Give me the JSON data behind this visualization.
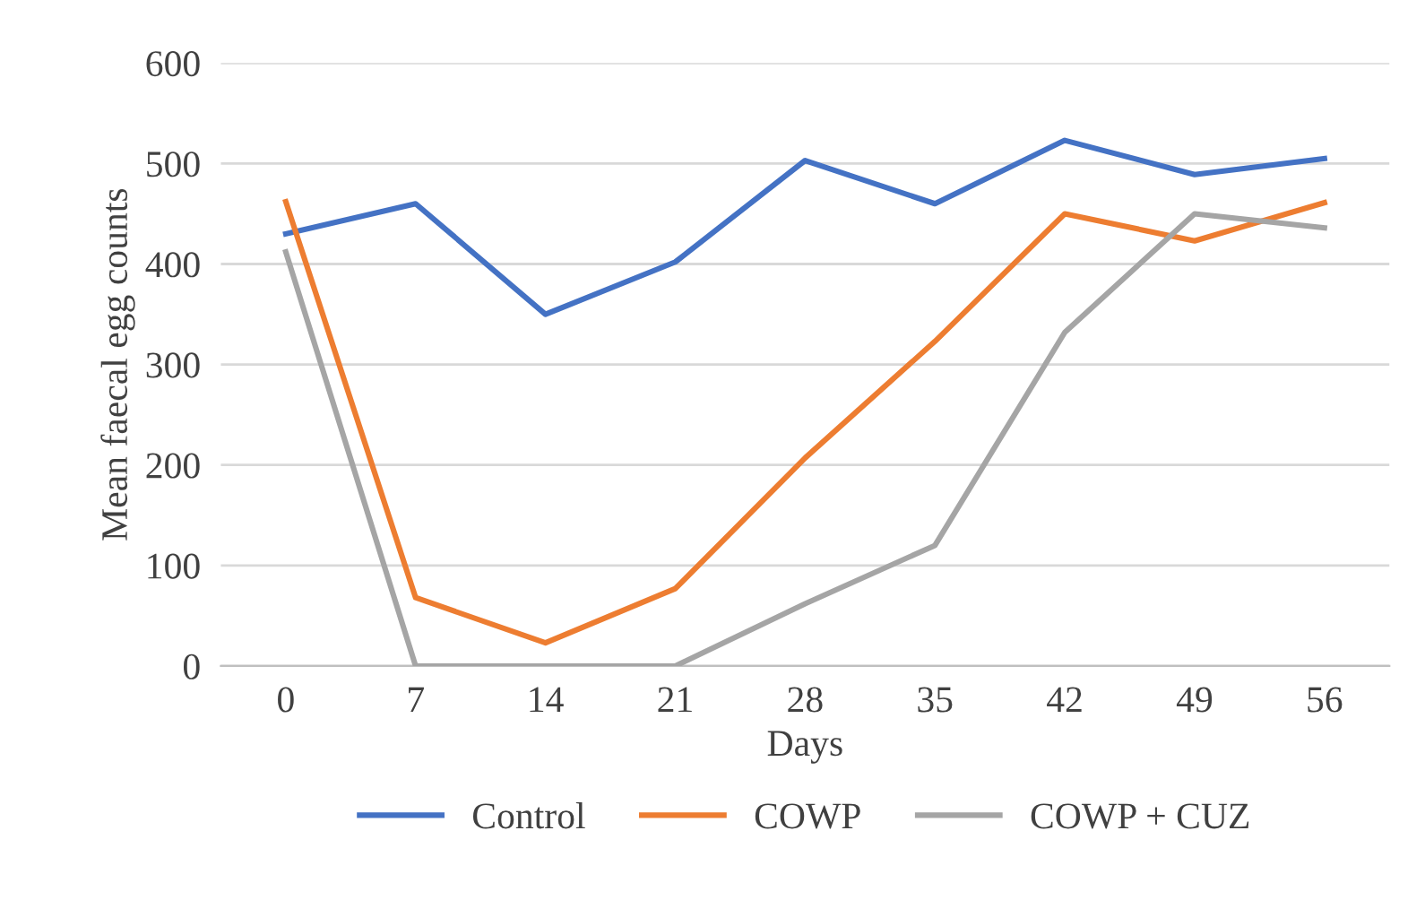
{
  "chart_data": {
    "type": "line",
    "xlabel": "Days",
    "ylabel": "Mean faecal egg counts",
    "categories": [
      "0",
      "7",
      "14",
      "21",
      "28",
      "35",
      "42",
      "49",
      "56"
    ],
    "series": [
      {
        "name": "Control",
        "color": "#4472c4",
        "values": [
          430,
          460,
          350,
          402,
          503,
          460,
          523,
          489,
          505
        ]
      },
      {
        "name": "COWP",
        "color": "#ed7d31",
        "values": [
          462,
          68,
          23,
          77,
          207,
          323,
          450,
          423,
          461
        ]
      },
      {
        "name": "COWP + CUZ",
        "color": "#a5a5a5",
        "values": [
          412,
          0,
          0,
          0,
          62,
          120,
          332,
          450,
          436
        ]
      }
    ],
    "ylim": [
      0,
      600
    ],
    "yticks": [
      0,
      100,
      200,
      300,
      400,
      500,
      600
    ],
    "grid": "y",
    "legend": "bottom",
    "marker": "none",
    "line_style": "solid"
  }
}
